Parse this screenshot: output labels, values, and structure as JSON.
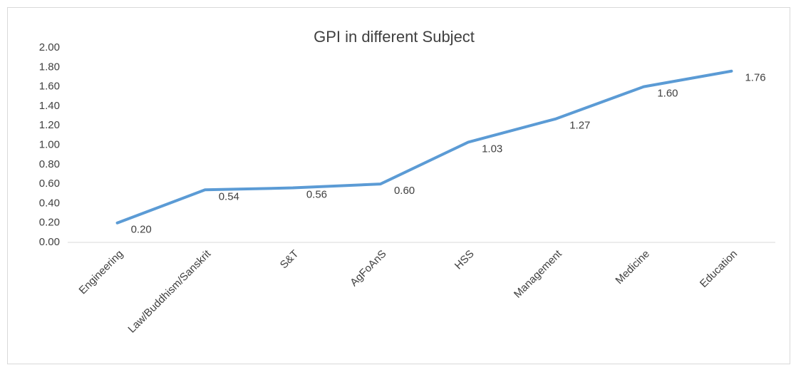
{
  "chart_data": {
    "type": "line",
    "title": "GPI in different Subject",
    "categories": [
      "Engineering",
      "Law/Buddhism/Sanskrit",
      "S&T",
      "AgFoAnS",
      "HSS",
      "Management",
      "Medicine",
      "Education"
    ],
    "series": [
      {
        "name": "GPI",
        "color": "#5b9bd5",
        "values": [
          0.2,
          0.54,
          0.56,
          0.6,
          1.03,
          1.27,
          1.6,
          1.76
        ],
        "value_labels": [
          "0.20",
          "0.54",
          "0.56",
          "0.60",
          "1.03",
          "1.27",
          "1.60",
          "1.76"
        ]
      }
    ],
    "ylim": [
      0,
      2
    ],
    "yticks": [
      {
        "value": 0,
        "label": "0.00"
      },
      {
        "value": 0.2,
        "label": "0.20"
      },
      {
        "value": 0.4,
        "label": "0.40"
      },
      {
        "value": 0.6,
        "label": "0.60"
      },
      {
        "value": 0.8,
        "label": "0.80"
      },
      {
        "value": 1,
        "label": "1.00"
      },
      {
        "value": 1.2,
        "label": "1.20"
      },
      {
        "value": 1.4,
        "label": "1.40"
      },
      {
        "value": 1.6,
        "label": "1.60"
      },
      {
        "value": 1.8,
        "label": "1.80"
      },
      {
        "value": 2,
        "label": "2.00"
      }
    ],
    "grid": false,
    "legend": false
  }
}
